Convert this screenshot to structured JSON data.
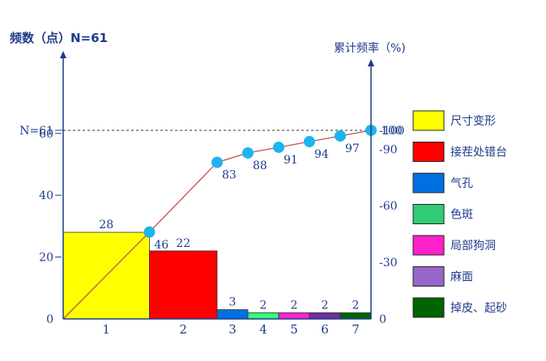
{
  "chart_data": {
    "type": "bar",
    "title_left": "频数（点）N=61",
    "title_right": "累计频率（%)",
    "n_label": "N=61",
    "categories": [
      "1",
      "2",
      "3",
      "4",
      "5",
      "6",
      "7"
    ],
    "values": [
      28,
      22,
      3,
      2,
      2,
      2,
      2
    ],
    "bar_colors": [
      "#ffff00",
      "#ff0000",
      "#0070e0",
      "#33ff77",
      "#ff22cc",
      "#7030a0",
      "#006400"
    ],
    "cumulative_percent": [
      46,
      83,
      88,
      91,
      94,
      97,
      100
    ],
    "cumulative_labels": [
      "46",
      "83",
      "88",
      "91",
      "94",
      "97",
      "100"
    ],
    "ylim": [
      0,
      61
    ],
    "yticks": [
      0,
      20,
      40,
      60
    ],
    "y2lim": [
      0,
      100
    ],
    "y2ticks": [
      0,
      30,
      60,
      90,
      100
    ],
    "y2tick_labels": [
      "0",
      "-30",
      "-60",
      "-90",
      "-100"
    ],
    "legend": [
      {
        "label": "尺寸变形",
        "color": "#ffff00"
      },
      {
        "label": "接茬处错台",
        "color": "#ff0000"
      },
      {
        "label": "气孔",
        "color": "#0070e0"
      },
      {
        "label": "色斑",
        "color": "#33cc77"
      },
      {
        "label": "局部狗洞",
        "color": "#ff22cc"
      },
      {
        "label": " 麻面",
        "color": "#9966cc"
      },
      {
        "label": " 掉皮、起砂",
        "color": "#006400"
      }
    ],
    "legend_position": "right",
    "line_color": "#c0504d",
    "point_color": "#1eb4ee",
    "grid": false
  }
}
